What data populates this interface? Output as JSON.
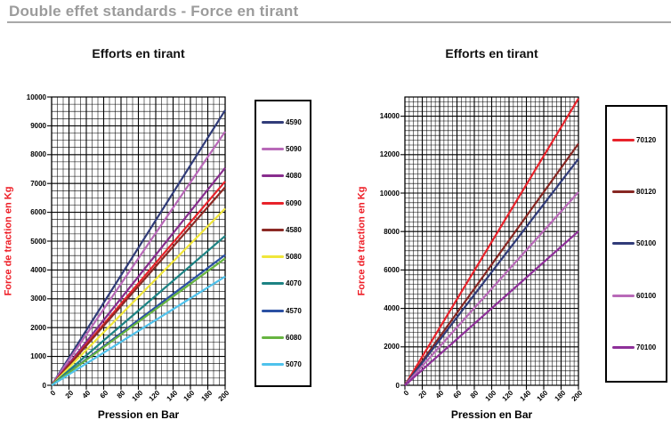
{
  "page": {
    "title": "Double effet standards - Force en tirant"
  },
  "colors": {
    "heading": "#9b9b9b",
    "rule": "#a8a8a8",
    "axis_title_red": "#ee1c25",
    "grid": "#000000"
  },
  "chart_data": [
    {
      "type": "line",
      "title": "Efforts en tirant",
      "xlabel": "Pression en Bar",
      "ylabel": "Force de traction en Kg",
      "xlim": [
        0,
        200
      ],
      "ylim": [
        0,
        10000
      ],
      "xticks": [
        0,
        20,
        40,
        60,
        80,
        100,
        120,
        140,
        160,
        180,
        200
      ],
      "yticks": [
        0,
        1000,
        2000,
        3000,
        4000,
        5000,
        6000,
        7000,
        8000,
        9000,
        10000
      ],
      "x_minor_divisions": 30,
      "y_minor_divisions": 40,
      "grid": true,
      "legend_position": "right",
      "series": [
        {
          "name": "4590",
          "color": "#313c79",
          "x": [
            0,
            200
          ],
          "values": [
            0,
            9540
          ]
        },
        {
          "name": "5090",
          "color": "#b869b8",
          "x": [
            0,
            200
          ],
          "values": [
            0,
            8800
          ]
        },
        {
          "name": "4080",
          "color": "#882d8e",
          "x": [
            0,
            200
          ],
          "values": [
            0,
            7540
          ]
        },
        {
          "name": "6090",
          "color": "#e8232b",
          "x": [
            0,
            200
          ],
          "values": [
            0,
            7070
          ]
        },
        {
          "name": "4580",
          "color": "#8c2a25",
          "x": [
            0,
            200
          ],
          "values": [
            0,
            6870
          ]
        },
        {
          "name": "5080",
          "color": "#f0e63a",
          "x": [
            0,
            200
          ],
          "values": [
            0,
            6130
          ]
        },
        {
          "name": "4070",
          "color": "#1d8384",
          "x": [
            0,
            200
          ],
          "values": [
            0,
            5180
          ]
        },
        {
          "name": "4570",
          "color": "#2b50a3",
          "x": [
            0,
            200
          ],
          "values": [
            0,
            4520
          ]
        },
        {
          "name": "6080",
          "color": "#67b440",
          "x": [
            0,
            200
          ],
          "values": [
            0,
            4400
          ]
        },
        {
          "name": "5070",
          "color": "#4fc2ec",
          "x": [
            0,
            200
          ],
          "values": [
            0,
            3770
          ]
        }
      ]
    },
    {
      "type": "line",
      "title": "Efforts en tirant",
      "xlabel": "Pression en Bar",
      "ylabel": "Force de traction en Kg",
      "xlim": [
        0,
        200
      ],
      "ylim": [
        0,
        15000
      ],
      "xticks": [
        0,
        20,
        40,
        60,
        80,
        100,
        120,
        140,
        160,
        180,
        200
      ],
      "yticks": [
        0,
        2000,
        4000,
        6000,
        8000,
        10000,
        12000,
        14000
      ],
      "x_minor_divisions": 40,
      "y_minor_divisions": 60,
      "grid": true,
      "legend_position": "right",
      "series": [
        {
          "name": "70120",
          "color": "#e8232b",
          "x": [
            0,
            200
          ],
          "values": [
            0,
            14920
          ]
        },
        {
          "name": "80120",
          "color": "#872723",
          "x": [
            0,
            200
          ],
          "values": [
            0,
            12570
          ]
        },
        {
          "name": "50100",
          "color": "#313c79",
          "x": [
            0,
            200
          ],
          "values": [
            0,
            11780
          ]
        },
        {
          "name": "60100",
          "color": "#b869b8",
          "x": [
            0,
            200
          ],
          "values": [
            0,
            10050
          ]
        },
        {
          "name": "70100",
          "color": "#8e3099",
          "x": [
            0,
            200
          ],
          "values": [
            0,
            8010
          ]
        }
      ]
    }
  ]
}
